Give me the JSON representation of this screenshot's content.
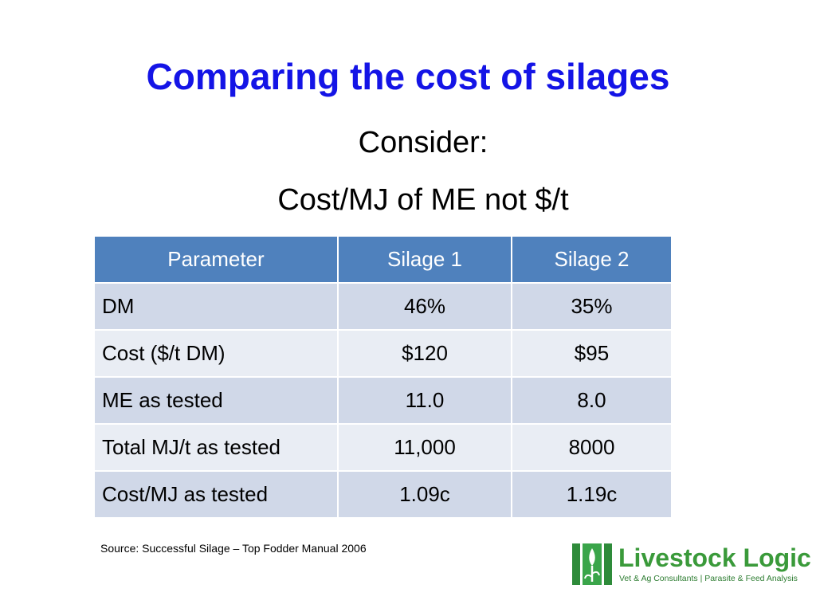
{
  "slide": {
    "title": "Comparing the cost of silages",
    "subtitle_line1": "Consider:",
    "subtitle_line2": "Cost/MJ of ME not $/t"
  },
  "table": {
    "headers": [
      "Parameter",
      "Silage 1",
      "Silage 2"
    ],
    "rows": [
      [
        "DM",
        "46%",
        "35%"
      ],
      [
        "Cost ($/t DM)",
        "$120",
        "$95"
      ],
      [
        "ME as tested",
        "11.0",
        "8.0"
      ],
      [
        "Total MJ/t as tested",
        "11,000",
        "8000"
      ],
      [
        "Cost/MJ as tested",
        "1.09c",
        "1.19c"
      ]
    ]
  },
  "footer": {
    "source": "Source: Successful Silage – Top Fodder Manual 2006"
  },
  "logo": {
    "name": "Livestock Logic",
    "tagline": "Vet & Ag Consultants | Parasite & Feed Analysis"
  },
  "colors": {
    "title": "#1414e6",
    "header_bg": "#4f81bd",
    "row_odd": "#d0d8e8",
    "row_even": "#e9edf4",
    "logo_green": "#3a9a3a"
  }
}
